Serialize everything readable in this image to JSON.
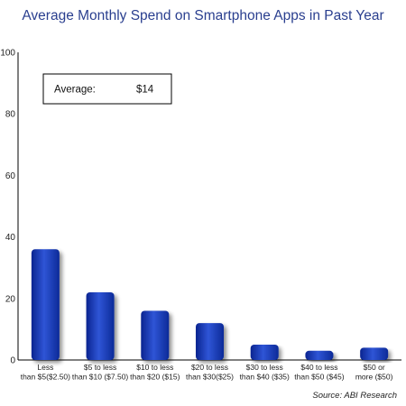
{
  "chart_data": {
    "type": "bar",
    "title": "Average Monthly Spend on Smartphone Apps in Past Year",
    "categories": [
      [
        "Less",
        "than $5($2.50)"
      ],
      [
        "$5 to less",
        "than $10 ($7.50)"
      ],
      [
        "$10 to less",
        "than $20 ($15)"
      ],
      [
        "$20 to less",
        "than $30($25)"
      ],
      [
        "$30 to less",
        "than $40 ($35)"
      ],
      [
        "$40 to less",
        "than $50 ($45)"
      ],
      [
        "$50 or",
        "more ($50)"
      ]
    ],
    "values": [
      36,
      22,
      16,
      12,
      5,
      3,
      4
    ],
    "ylim": [
      0,
      100
    ],
    "yticks": [
      0,
      20,
      40,
      60,
      80,
      100
    ],
    "grid": false,
    "bar_color": "#1535a8",
    "annotation": {
      "label": "Average:",
      "value": "$14"
    },
    "source": "Source: ABI Research"
  }
}
